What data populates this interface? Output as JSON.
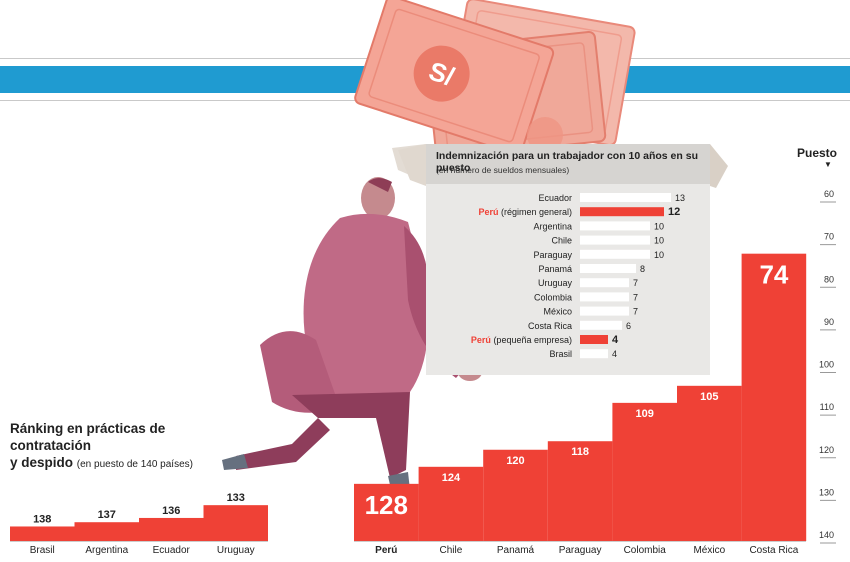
{
  "rank_title_line1": "Ránking en prácticas de contratación",
  "rank_title_line2": "y despido",
  "rank_subtitle": "(en puesto de 140 países)",
  "colors": {
    "bar_red": "#ef4136",
    "band_blue": "#1f9bd1",
    "grey_bar": "#ffffff"
  },
  "illustration": {
    "currency_symbol": "S/"
  },
  "chart_data": [
    {
      "type": "bar",
      "chart": "ranking",
      "axis_title": "Puesto",
      "yticks": [
        60,
        70,
        80,
        90,
        100,
        110,
        120,
        130,
        140
      ],
      "ylim": [
        60,
        140
      ],
      "inverted": true,
      "series_left": {
        "categories": [
          "Brasil",
          "Argentina",
          "Ecuador",
          "Uruguay"
        ],
        "values": [
          138,
          137,
          136,
          133
        ]
      },
      "series_right": {
        "categories": [
          "Perú",
          "Chile",
          "Panamá",
          "Paraguay",
          "Colombia",
          "México",
          "Costa Rica"
        ],
        "values": [
          128,
          124,
          120,
          118,
          109,
          105,
          74
        ]
      }
    },
    {
      "type": "bar",
      "chart": "indemnizacion",
      "title": "Indemnización para un trabajador con 10 años en su puesto",
      "subtitle": "(en número de sueldos mensuales)",
      "rows": [
        {
          "label": "Ecuador",
          "bold": "",
          "value": 13,
          "highlight": false
        },
        {
          "label": "(régimen general)",
          "bold": "Perú",
          "value": 12,
          "highlight": true
        },
        {
          "label": "Argentina",
          "bold": "",
          "value": 10,
          "highlight": false
        },
        {
          "label": "Chile",
          "bold": "",
          "value": 10,
          "highlight": false
        },
        {
          "label": "Paraguay",
          "bold": "",
          "value": 10,
          "highlight": false
        },
        {
          "label": "Panamá",
          "bold": "",
          "value": 8,
          "highlight": false
        },
        {
          "label": "Uruguay",
          "bold": "",
          "value": 7,
          "highlight": false
        },
        {
          "label": "Colombia",
          "bold": "",
          "value": 7,
          "highlight": false
        },
        {
          "label": "México",
          "bold": "",
          "value": 7,
          "highlight": false
        },
        {
          "label": "Costa Rica",
          "bold": "",
          "value": 6,
          "highlight": false
        },
        {
          "label": "(pequeña empresa)",
          "bold": "Perú",
          "value": 4,
          "highlight": true
        },
        {
          "label": "Brasil",
          "bold": "",
          "value": 4,
          "highlight": false
        }
      ]
    }
  ]
}
